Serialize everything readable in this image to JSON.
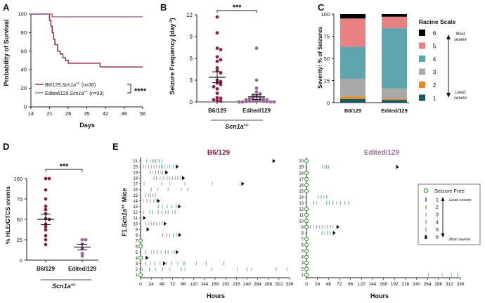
{
  "panel_letters": [
    "A",
    "B",
    "C",
    "D",
    "E"
  ],
  "colors": {
    "b6": "#8b1e4a",
    "edited": "#9a6a96",
    "axis": "#222222"
  },
  "racine_legend": {
    "title": "Racine Scale",
    "most": [
      "Most",
      "severe"
    ],
    "least": [
      "Least",
      "severe"
    ],
    "items": [
      {
        "label": "6",
        "color": "#000000"
      },
      {
        "label": "5",
        "color": "#e78182"
      },
      {
        "label": "4",
        "color": "#5da4ad"
      },
      {
        "label": "3",
        "color": "#a9a9a9"
      },
      {
        "label": "2",
        "color": "#e58a2b"
      },
      {
        "label": "1",
        "color": "#16585e"
      }
    ]
  },
  "e_legend": {
    "seizure_free": "Seizure Free",
    "least": "Least severe",
    "most": "Most severe",
    "items": [
      {
        "label": "1",
        "color": "#16585e"
      },
      {
        "label": "2",
        "color": "#e58a2b"
      },
      {
        "label": "3",
        "color": "#a9a9a9"
      },
      {
        "label": "4",
        "color": "#5da4ad"
      },
      {
        "label": "5",
        "color": "#e78182"
      },
      {
        "label": "6",
        "color": "#000000"
      }
    ]
  },
  "chart_data": [
    {
      "panel": "A",
      "type": "line",
      "xlabel": "Days",
      "ylabel": "Probability of Survival",
      "xlim": [
        14,
        56
      ],
      "ylim": [
        0,
        100
      ],
      "xticks": [
        "14",
        "21",
        "28",
        "35",
        "42",
        "49",
        "56"
      ],
      "yticks": [
        "0",
        "20",
        "40",
        "60",
        "80",
        "100"
      ],
      "series": [
        {
          "name": "B6/129.Scn1a+/- (n=30)",
          "legend_prefix": "B6/129.",
          "legend_gene": "Scn1a",
          "legend_sup": "+/-",
          "legend_n": "(n=30)",
          "x": [
            14,
            20,
            21,
            21.5,
            22,
            22.5,
            23,
            24,
            25,
            26,
            27,
            28,
            30,
            33,
            40,
            56
          ],
          "y": [
            100,
            100,
            93,
            87,
            80,
            73,
            67,
            60,
            57,
            53,
            50,
            47,
            47,
            47,
            43,
            43
          ]
        },
        {
          "name": "Edited/129.Scn1a+/- (n=33)",
          "legend_prefix": "Edited/129.",
          "legend_gene": "Scn1a",
          "legend_sup": "+/-",
          "legend_n": "(n=33)",
          "x": [
            14,
            21,
            22,
            56
          ],
          "y": [
            100,
            100,
            97,
            97
          ]
        }
      ],
      "annotation": "****"
    },
    {
      "panel": "B",
      "type": "scatter",
      "ylabel": "Seizure Frequency (day",
      "ylabel_sup": "-1",
      "ylabel_end": ")",
      "ylim": [
        0,
        12
      ],
      "yticks": [
        "0",
        "3",
        "6",
        "9",
        "12"
      ],
      "categories": [
        "B6/129",
        "Edited/129"
      ],
      "genotype": "Scn1a",
      "genotype_sup": "+/-",
      "groups": [
        {
          "name": "B6/129",
          "values": [
            11.7,
            9.5,
            7.4,
            7.2,
            6.2,
            5.8,
            5.6,
            4.7,
            4.3,
            4.0,
            3.0,
            2.8,
            2.6,
            2.4,
            2.1,
            1.8,
            1.2,
            0.6,
            0.5,
            0.3,
            0.2,
            0.1
          ],
          "mean": 3.4,
          "sem": 0.75
        },
        {
          "name": "Edited/129",
          "values": [
            7.4,
            3.0,
            1.9,
            1.4,
            1.1,
            0.9,
            0.8,
            0.6,
            0.5,
            0.4,
            0.4,
            0.3,
            0.3,
            0.2,
            0.2,
            0.1,
            0.1,
            0.1,
            0.05,
            0.05,
            0.0,
            0.0,
            0.0,
            0.0
          ],
          "mean": 0.7,
          "sem": 0.35
        }
      ],
      "annotation": "***"
    },
    {
      "panel": "C",
      "type": "bar",
      "stacked": true,
      "ylabel": "Severity: % of Seizures",
      "ylim": [
        0,
        100
      ],
      "yticks": [
        "0",
        "25",
        "50",
        "75",
        "100"
      ],
      "categories": [
        "B6/129",
        "Edited/129"
      ],
      "series": [
        {
          "name": "1",
          "values": [
            4,
            3
          ]
        },
        {
          "name": "2",
          "values": [
            3,
            1
          ]
        },
        {
          "name": "3",
          "values": [
            20,
            12
          ]
        },
        {
          "name": "4",
          "values": [
            36,
            68
          ]
        },
        {
          "name": "5",
          "values": [
            32,
            13
          ]
        },
        {
          "name": "6",
          "values": [
            5,
            3
          ]
        }
      ]
    },
    {
      "panel": "D",
      "type": "scatter",
      "ylabel": "% HLE/GTCS events",
      "ylim": [
        0,
        100
      ],
      "yticks": [
        "0",
        "25",
        "50",
        "75",
        "100"
      ],
      "categories": [
        "B6/129",
        "Edited/129"
      ],
      "genotype": "Scn1a",
      "genotype_sup": "+/-",
      "groups": [
        {
          "name": "B6/129",
          "values": [
            100,
            100,
            86,
            75,
            66,
            62,
            57,
            51,
            50,
            44,
            41,
            37,
            30,
            25,
            19
          ],
          "mean": 50,
          "sem": 6.5
        },
        {
          "name": "Edited/129",
          "values": [
            25,
            25,
            20,
            14,
            8,
            5
          ],
          "mean": 16,
          "sem": 3.5
        }
      ],
      "annotation": "***"
    },
    {
      "panel": "E",
      "type": "scatter",
      "xlabel": "Hours",
      "ylabel_prefix": "F1.",
      "ylabel_gene": "Scn1a",
      "ylabel_sup": "+/-",
      "ylabel_suffix": " Mice",
      "xlim": [
        0,
        336
      ],
      "xticks": [
        "0",
        "24",
        "48",
        "72",
        "96",
        "120",
        "144",
        "168",
        "192",
        "216",
        "240",
        "264",
        "288",
        "312",
        "336"
      ],
      "groups": [
        {
          "title": "B6/129",
          "n_mice": 21,
          "seizure_free": [
            1,
            4,
            6,
            7
          ],
          "death": [
            {
              "mouse": 21,
              "hour": 300
            },
            {
              "mouse": 20,
              "hour": 82
            },
            {
              "mouse": 19,
              "hour": 58
            },
            {
              "mouse": 18,
              "hour": 96
            },
            {
              "mouse": 17,
              "hour": 230
            },
            {
              "mouse": 14,
              "hour": 40
            },
            {
              "mouse": 13,
              "hour": 87
            },
            {
              "mouse": 11,
              "hour": 8
            },
            {
              "mouse": 10,
              "hour": 55
            },
            {
              "mouse": 9,
              "hour": 16
            },
            {
              "mouse": 8,
              "hour": 88
            },
            {
              "mouse": 5,
              "hour": 82
            },
            {
              "mouse": 4,
              "hour": 14
            },
            {
              "mouse": 3,
              "hour": 53
            }
          ],
          "events": [
            {
              "mouse": 21,
              "hours": [
                14,
                22,
                26,
                30,
                34,
                38,
                42,
                48
              ],
              "grades": [
                4,
                3,
                4,
                5,
                4,
                3,
                4,
                4
              ]
            },
            {
              "mouse": 20,
              "hours": [
                6,
                12,
                18,
                24,
                30,
                36,
                42,
                48,
                54,
                60,
                66,
                74
              ],
              "grades": [
                4,
                3,
                4,
                4,
                5,
                3,
                4,
                1,
                4,
                3,
                4,
                4
              ]
            },
            {
              "mouse": 19,
              "hours": [
                22,
                28,
                34,
                40,
                46,
                50
              ],
              "grades": [
                4,
                3,
                4,
                4,
                5,
                4
              ]
            },
            {
              "mouse": 18,
              "hours": [
                30,
                36,
                44,
                52,
                60,
                66,
                72,
                78,
                84,
                90
              ],
              "grades": [
                5,
                4,
                3,
                5,
                4,
                5,
                4,
                5,
                4,
                5
              ]
            },
            {
              "mouse": 17,
              "hours": [
                8,
                48,
                66,
                100,
                162,
                224
              ],
              "grades": [
                3,
                4,
                3,
                4,
                3,
                4
              ]
            },
            {
              "mouse": 16,
              "hours": [
                24,
                38,
                62,
                92,
                106
              ],
              "grades": [
                4,
                3,
                4,
                3,
                4
              ]
            },
            {
              "mouse": 15,
              "hours": [
                12,
                18,
                22,
                28,
                34
              ],
              "grades": [
                4,
                3,
                4,
                4,
                3
              ]
            },
            {
              "mouse": 14,
              "hours": [
                6,
                14,
                22,
                30,
                36
              ],
              "grades": [
                3,
                5,
                4,
                4,
                3
              ]
            },
            {
              "mouse": 13,
              "hours": [
                40,
                50,
                60,
                70,
                80
              ],
              "grades": [
                4,
                3,
                4,
                4,
                5
              ]
            },
            {
              "mouse": 12,
              "hours": [
                6,
                20,
                26,
                40,
                48,
                56,
                62,
                72,
                78
              ],
              "grades": [
                4,
                3,
                4,
                2,
                4,
                3,
                4,
                3,
                4
              ]
            },
            {
              "mouse": 10,
              "hours": [
                12,
                18,
                24,
                30,
                36,
                42,
                48
              ],
              "grades": [
                4,
                3,
                2,
                4,
                5,
                3,
                4
              ]
            },
            {
              "mouse": 8,
              "hours": [
                50,
                58,
                66,
                74,
                82
              ],
              "grades": [
                4,
                5,
                3,
                4,
                5
              ]
            },
            {
              "mouse": 5,
              "hours": [
                12,
                24,
                30,
                38,
                46,
                56,
                62,
                70,
                76
              ],
              "grades": [
                4,
                3,
                4,
                4,
                3,
                4,
                4,
                3,
                4
              ]
            },
            {
              "mouse": 3,
              "hours": [
                12,
                22,
                32,
                44,
                58,
                70,
                84,
                96,
                100,
                126,
                148,
                188
              ],
              "grades": [
                4,
                3,
                4,
                4,
                3,
                4,
                3,
                4,
                4,
                3,
                4,
                4
              ]
            },
            {
              "mouse": 2,
              "hours": [
                4,
                20,
                34,
                50,
                66,
                92,
                100,
                160,
                218,
                240,
                250,
                306,
                330
              ],
              "grades": [
                3,
                4,
                3,
                4,
                3,
                4,
                3,
                4,
                3,
                4,
                3,
                4,
                3
              ]
            }
          ]
        },
        {
          "title": "Edited/129",
          "n_mice": 20,
          "seizure_free": [
            1,
            2,
            3,
            4,
            5,
            6,
            7,
            9,
            10,
            11,
            12,
            15,
            16,
            17,
            18,
            20
          ],
          "death": [
            {
              "mouse": 19,
              "hour": 198
            },
            {
              "mouse": 9,
              "hour": 68
            },
            {
              "mouse": 8,
              "hour": 60
            }
          ],
          "events": [
            {
              "mouse": 19,
              "hours": [
                36,
                40,
                44,
                48
              ],
              "grades": [
                4,
                3,
                4,
                4
              ]
            },
            {
              "mouse": 14,
              "hours": [
                26,
                32,
                38,
                44
              ],
              "grades": [
                4,
                4,
                3,
                4
              ]
            },
            {
              "mouse": 13,
              "hours": [
                16,
                22,
                44,
                50,
                58,
                66,
                74,
                84,
                92
              ],
              "grades": [
                4,
                3,
                4,
                4,
                4,
                3,
                4,
                4,
                4
              ]
            },
            {
              "mouse": 9,
              "hours": [
                8,
                16,
                22,
                28,
                34,
                40,
                46,
                52,
                58
              ],
              "grades": [
                4,
                3,
                4,
                5,
                4,
                3,
                4,
                4,
                3
              ]
            },
            {
              "mouse": 8,
              "hours": [
                34,
                40,
                46,
                52
              ],
              "grades": [
                4,
                3,
                4,
                4
              ]
            },
            {
              "mouse": 1,
              "hours": [
                266,
                296,
                316,
                330
              ],
              "grades": [
                4,
                3,
                4,
                4
              ]
            }
          ]
        }
      ]
    }
  ]
}
